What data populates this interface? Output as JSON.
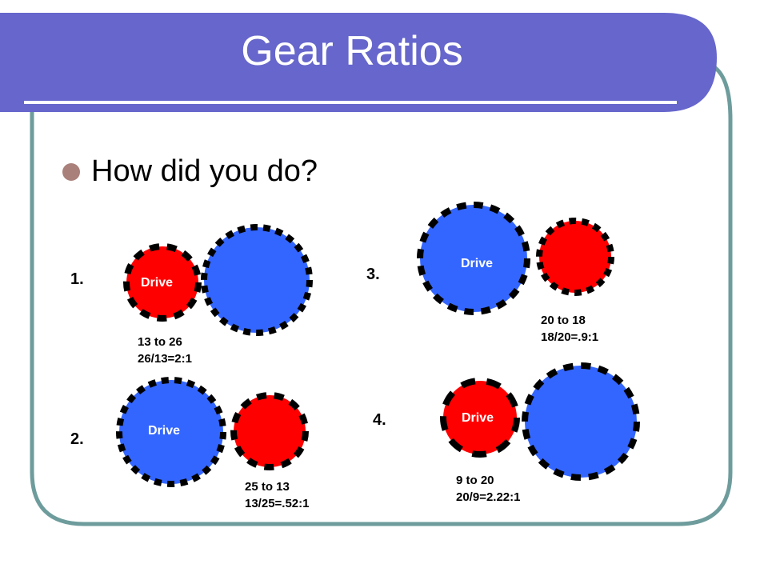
{
  "slide": {
    "title": "Gear Ratios",
    "bullet": "How did you do?",
    "colors": {
      "title_band": "#6666cc",
      "frame": "#6e9c9c",
      "bullet": "#a9807a",
      "gear_blue": "#3366ff",
      "gear_red": "#ff0000",
      "teeth": "#000000"
    },
    "problems": [
      {
        "number": "1.",
        "drive_label": "Drive",
        "answer_line1": "13 to 26",
        "answer_line2": "26/13=2:1"
      },
      {
        "number": "2.",
        "drive_label": "Drive",
        "answer_line1": "25 to 13",
        "answer_line2": "13/25=.52:1"
      },
      {
        "number": "3.",
        "drive_label": "Drive",
        "answer_line1": "20 to 18",
        "answer_line2": "18/20=.9:1"
      },
      {
        "number": "4.",
        "drive_label": "Drive",
        "answer_line1": "9 to 20",
        "answer_line2": "20/9=2.22:1"
      }
    ]
  }
}
